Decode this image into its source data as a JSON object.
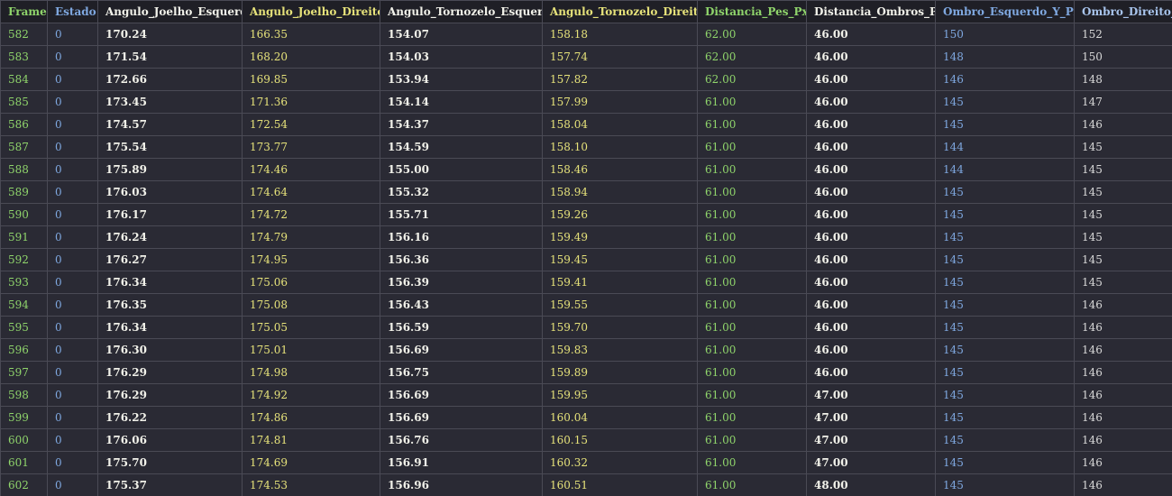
{
  "colors": {
    "background": "#262630",
    "header_background": "#1f1f26",
    "border": "#4a4a55",
    "green": "#8fd46b",
    "blue": "#7fa8e0",
    "white": "#f2f2ea",
    "yellow": "#e6e27a"
  },
  "table": {
    "columns": [
      {
        "label": "Frame",
        "color_class": "c-green",
        "cell_class": "c-green"
      },
      {
        "label": "Estado",
        "color_class": "c-blue",
        "cell_class": "c-blue"
      },
      {
        "label": "Angulo_Joelho_Esquerdo",
        "color_class": "c-white",
        "cell_class": "c-whitebold"
      },
      {
        "label": "Angulo_Joelho_Direito",
        "color_class": "c-yellow",
        "cell_class": "c-yellow"
      },
      {
        "label": "Angulo_Tornozelo_Esquerdo",
        "color_class": "c-white",
        "cell_class": "c-whitebold"
      },
      {
        "label": "Angulo_Tornozelo_Direito",
        "color_class": "c-yellow",
        "cell_class": "c-yellow"
      },
      {
        "label": "Distancia_Pes_Px",
        "color_class": "c-green",
        "cell_class": "c-green"
      },
      {
        "label": "Distancia_Ombros_Px",
        "color_class": "c-white",
        "cell_class": "c-whitebold"
      },
      {
        "label": "Ombro_Esquerdo_Y_Px",
        "color_class": "c-blue",
        "cell_class": "c-blue"
      },
      {
        "label": "Ombro_Direito_Y_Px",
        "color_class": "c-lblue",
        "cell_class": "c-lgrey"
      }
    ],
    "rows": [
      [
        "582",
        "0",
        "170.24",
        "166.35",
        "154.07",
        "158.18",
        "62.00",
        "46.00",
        "150",
        "152"
      ],
      [
        "583",
        "0",
        "171.54",
        "168.20",
        "154.03",
        "157.74",
        "62.00",
        "46.00",
        "148",
        "150"
      ],
      [
        "584",
        "0",
        "172.66",
        "169.85",
        "153.94",
        "157.82",
        "62.00",
        "46.00",
        "146",
        "148"
      ],
      [
        "585",
        "0",
        "173.45",
        "171.36",
        "154.14",
        "157.99",
        "61.00",
        "46.00",
        "145",
        "147"
      ],
      [
        "586",
        "0",
        "174.57",
        "172.54",
        "154.37",
        "158.04",
        "61.00",
        "46.00",
        "145",
        "146"
      ],
      [
        "587",
        "0",
        "175.54",
        "173.77",
        "154.59",
        "158.10",
        "61.00",
        "46.00",
        "144",
        "145"
      ],
      [
        "588",
        "0",
        "175.89",
        "174.46",
        "155.00",
        "158.46",
        "61.00",
        "46.00",
        "144",
        "145"
      ],
      [
        "589",
        "0",
        "176.03",
        "174.64",
        "155.32",
        "158.94",
        "61.00",
        "46.00",
        "145",
        "145"
      ],
      [
        "590",
        "0",
        "176.17",
        "174.72",
        "155.71",
        "159.26",
        "61.00",
        "46.00",
        "145",
        "145"
      ],
      [
        "591",
        "0",
        "176.24",
        "174.79",
        "156.16",
        "159.49",
        "61.00",
        "46.00",
        "145",
        "145"
      ],
      [
        "592",
        "0",
        "176.27",
        "174.95",
        "156.36",
        "159.45",
        "61.00",
        "46.00",
        "145",
        "145"
      ],
      [
        "593",
        "0",
        "176.34",
        "175.06",
        "156.39",
        "159.41",
        "61.00",
        "46.00",
        "145",
        "145"
      ],
      [
        "594",
        "0",
        "176.35",
        "175.08",
        "156.43",
        "159.55",
        "61.00",
        "46.00",
        "145",
        "146"
      ],
      [
        "595",
        "0",
        "176.34",
        "175.05",
        "156.59",
        "159.70",
        "61.00",
        "46.00",
        "145",
        "146"
      ],
      [
        "596",
        "0",
        "176.30",
        "175.01",
        "156.69",
        "159.83",
        "61.00",
        "46.00",
        "145",
        "146"
      ],
      [
        "597",
        "0",
        "176.29",
        "174.98",
        "156.75",
        "159.89",
        "61.00",
        "46.00",
        "145",
        "146"
      ],
      [
        "598",
        "0",
        "176.29",
        "174.92",
        "156.69",
        "159.95",
        "61.00",
        "47.00",
        "145",
        "146"
      ],
      [
        "599",
        "0",
        "176.22",
        "174.86",
        "156.69",
        "160.04",
        "61.00",
        "47.00",
        "145",
        "146"
      ],
      [
        "600",
        "0",
        "176.06",
        "174.81",
        "156.76",
        "160.15",
        "61.00",
        "47.00",
        "145",
        "146"
      ],
      [
        "601",
        "0",
        "175.70",
        "174.69",
        "156.91",
        "160.32",
        "61.00",
        "47.00",
        "145",
        "146"
      ],
      [
        "602",
        "0",
        "175.37",
        "174.53",
        "156.96",
        "160.51",
        "61.00",
        "48.00",
        "145",
        "146"
      ]
    ]
  }
}
